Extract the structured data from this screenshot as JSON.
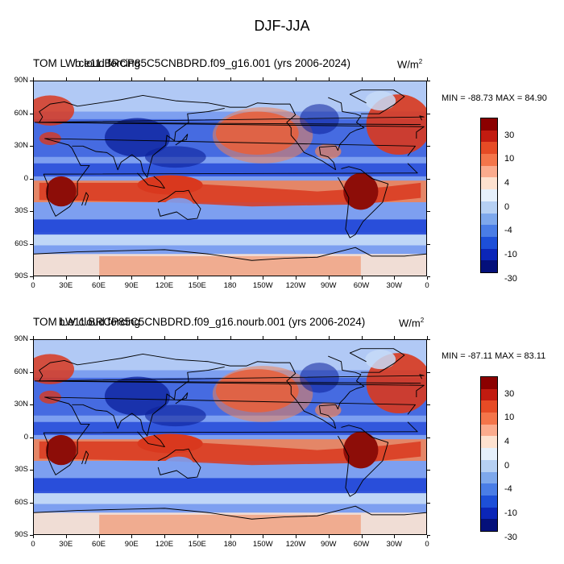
{
  "figure": {
    "title": "DJF-JJA"
  },
  "panels": [
    {
      "id": "top",
      "title_back": "TOM LW cloud forcing",
      "title_front": "b.e11.BRCP85C5CNBDRD.f09_g16.001 (yrs 2006-2024)",
      "units": "W/m",
      "units_sup": "2",
      "min_max": "MIN = -88.73 MAX =  84.90"
    },
    {
      "id": "bottom",
      "title_back": "TOM LW cloud forcing",
      "title_front": "b.e11.BRCP85C5CNBDRD.f09_g16.nourb.001 (yrs 2006-2024)",
      "units": "W/m",
      "units_sup": "2",
      "min_max": "MIN = -87.11 MAX =  83.11"
    }
  ],
  "axes": {
    "lat_labels": [
      "90N",
      "60N",
      "30N",
      "0",
      "30S",
      "60S",
      "90S"
    ],
    "lon_labels": [
      "0",
      "30E",
      "60E",
      "90E",
      "120E",
      "150E",
      "180",
      "150W",
      "120W",
      "90W",
      "60W",
      "30W",
      "0"
    ]
  },
  "colorbar": {
    "labels": [
      "30",
      "10",
      "4",
      "0",
      "-4",
      "-10",
      "-30"
    ],
    "colors": [
      "#8b0000",
      "#c21b10",
      "#e64b25",
      "#f4754a",
      "#fbab8d",
      "#fde1cf",
      "#e6f0fb",
      "#b6d0f3",
      "#7ea8ec",
      "#4a7de6",
      "#1d4fd8",
      "#0b26b8",
      "#04107a"
    ]
  },
  "map_colors": {
    "ocean_base": "#7d9ff0",
    "deep_blue": "#1a3fd6",
    "navy": "#0b1f9a",
    "light_blue": "#c7dbf7",
    "pale": "#fde3d2",
    "orange": "#f08358",
    "red": "#d9381e",
    "dark_red": "#8d0d08",
    "coast": "#000000"
  }
}
